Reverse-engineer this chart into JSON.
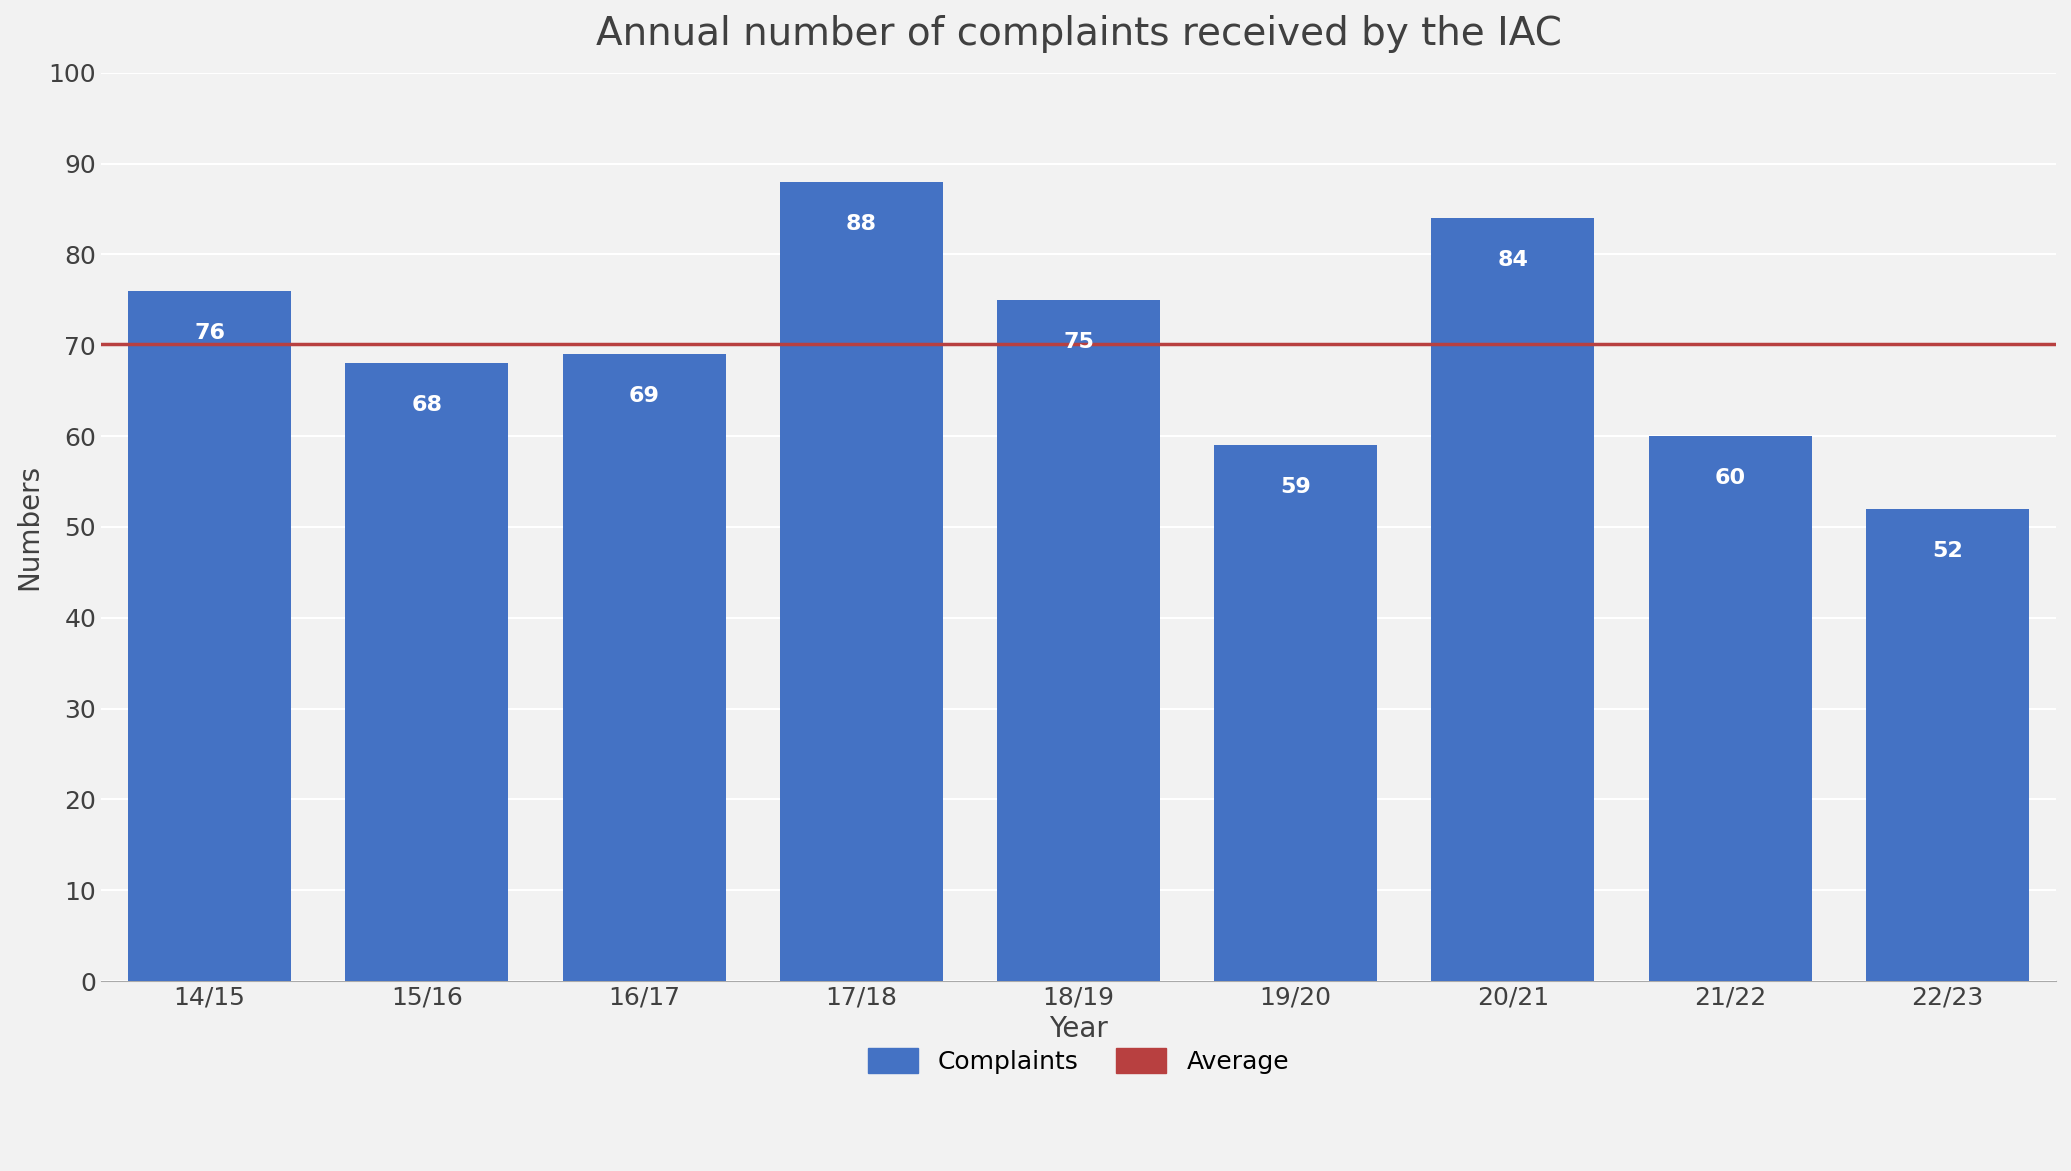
{
  "title": "Annual number of complaints received by the IAC",
  "categories": [
    "14/15",
    "15/16",
    "16/17",
    "17/18",
    "18/19",
    "19/20",
    "20/21",
    "21/22",
    "22/23"
  ],
  "values": [
    76,
    68,
    69,
    88,
    75,
    59,
    84,
    60,
    52
  ],
  "average": 70.1,
  "bar_color": "#4472C4",
  "average_line_color": "#B84040",
  "xlabel": "Year",
  "ylabel": "Numbers",
  "ylim": [
    0,
    100
  ],
  "yticks": [
    0,
    10,
    20,
    30,
    40,
    50,
    60,
    70,
    80,
    90,
    100
  ],
  "title_fontsize": 28,
  "axis_label_fontsize": 20,
  "tick_fontsize": 18,
  "bar_label_fontsize": 16,
  "legend_fontsize": 18,
  "background_color": "#f2f2f2",
  "plot_background_color": "#f2f2f2",
  "grid_color": "#ffffff",
  "legend_complaints": "Complaints",
  "legend_average": "Average",
  "bar_width": 0.75
}
